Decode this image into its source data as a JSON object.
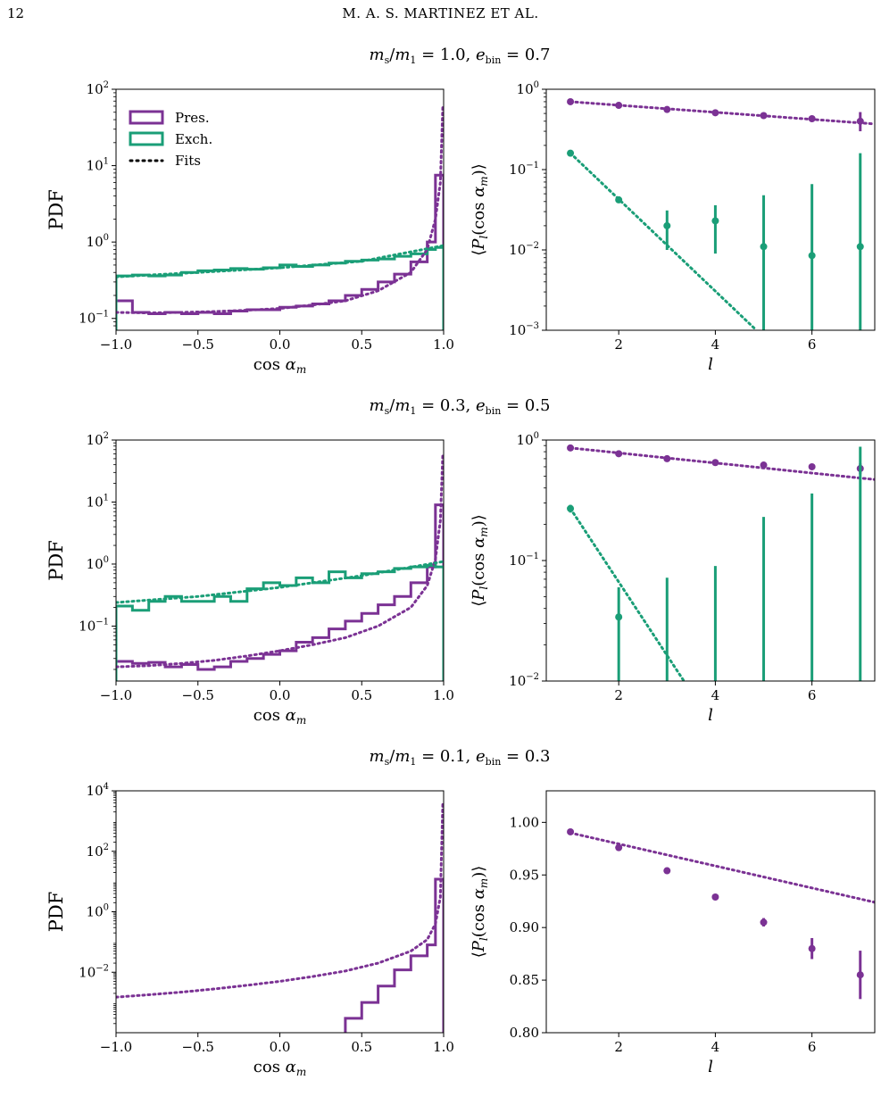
{
  "page": {
    "number": "12",
    "running_head": "M. A. S. MARTINEZ ET AL."
  },
  "colors": {
    "pres": "#7b3294",
    "exch": "#1a9e77",
    "axis": "#000000"
  },
  "legend": {
    "pres": "Pres.",
    "exch": "Exch.",
    "fits": "Fits"
  },
  "chart_data": [
    {
      "panel": "row1-left",
      "type": "line",
      "row_title": "m_s/m_1 = 1.0, e_bin = 0.7",
      "xlabel": "cos α_m",
      "ylabel": "PDF",
      "yscale": "log",
      "xlim": [
        -1.0,
        1.0
      ],
      "ylim": [
        0.07,
        100
      ],
      "xticks": [
        -1.0,
        -0.5,
        0.0,
        0.5,
        1.0
      ],
      "xticklabels": [
        "−1.0",
        "−0.5",
        "0.0",
        "0.5",
        "1.0"
      ],
      "yticks": [
        0.1,
        1,
        10,
        100
      ],
      "ytickmain": [
        "10",
        "10",
        "10",
        "10"
      ],
      "ytickexp": [
        "−1",
        "0",
        "1",
        "2"
      ],
      "legend_position": "top-left",
      "bin_edges": [
        -1.0,
        -0.9,
        -0.8,
        -0.7,
        -0.6,
        -0.5,
        -0.4,
        -0.3,
        -0.2,
        -0.1,
        0.0,
        0.1,
        0.2,
        0.3,
        0.4,
        0.5,
        0.6,
        0.7,
        0.8,
        0.9,
        0.95,
        1.0
      ],
      "series": [
        {
          "name": "Pres.",
          "color": "#7b3294",
          "kind": "hist",
          "values": [
            0.17,
            0.12,
            0.115,
            0.12,
            0.115,
            0.12,
            0.115,
            0.125,
            0.13,
            0.13,
            0.14,
            0.145,
            0.155,
            0.17,
            0.2,
            0.24,
            0.3,
            0.38,
            0.55,
            1.0,
            7.5
          ]
        },
        {
          "name": "Exch.",
          "color": "#1a9e77",
          "kind": "hist",
          "values": [
            0.36,
            0.37,
            0.36,
            0.37,
            0.4,
            0.42,
            0.43,
            0.45,
            0.44,
            0.46,
            0.5,
            0.48,
            0.5,
            0.53,
            0.56,
            0.58,
            0.6,
            0.65,
            0.7,
            0.8,
            0.85
          ]
        },
        {
          "name": "Fits",
          "color": "#7b3294",
          "kind": "fit",
          "x": [
            -1.0,
            -0.8,
            -0.6,
            -0.4,
            -0.2,
            0.0,
            0.2,
            0.4,
            0.6,
            0.8,
            0.9,
            0.95,
            0.98,
            0.995
          ],
          "values": [
            0.12,
            0.118,
            0.12,
            0.123,
            0.128,
            0.135,
            0.15,
            0.17,
            0.23,
            0.4,
            0.8,
            2.0,
            6.0,
            60
          ]
        },
        {
          "name": "Fits",
          "color": "#1a9e77",
          "kind": "fit",
          "x": [
            -1.0,
            -0.5,
            0.0,
            0.5,
            1.0
          ],
          "values": [
            0.35,
            0.4,
            0.46,
            0.56,
            0.9
          ]
        }
      ]
    },
    {
      "panel": "row1-right",
      "type": "scatter",
      "xlabel": "l",
      "ylabel": "⟨P_l(cos α_m)⟩",
      "yscale": "log",
      "xlim": [
        0.5,
        7.3
      ],
      "ylim": [
        0.001,
        1.0
      ],
      "xticks": [
        2,
        4,
        6
      ],
      "xticklabels": [
        "2",
        "4",
        "6"
      ],
      "yticks": [
        0.001,
        0.01,
        0.1,
        1
      ],
      "ytickmain": [
        "10",
        "10",
        "10",
        "10"
      ],
      "ytickexp": [
        "−3",
        "−2",
        "−1",
        "0"
      ],
      "series": [
        {
          "name": "Pres.",
          "color": "#7b3294",
          "x": [
            1,
            2,
            3,
            4,
            5,
            6,
            7
          ],
          "values": [
            0.7,
            0.63,
            0.56,
            0.51,
            0.47,
            0.43,
            0.4
          ],
          "err_lo": [
            0.68,
            0.61,
            0.545,
            0.495,
            0.45,
            0.415,
            0.3
          ],
          "err_hi": [
            0.72,
            0.65,
            0.575,
            0.525,
            0.49,
            0.445,
            0.52
          ]
        },
        {
          "name": "Exch.",
          "color": "#1a9e77",
          "x": [
            1,
            2,
            3,
            4,
            5,
            6,
            7
          ],
          "values": [
            0.16,
            0.042,
            0.02,
            0.023,
            0.011,
            0.0085,
            0.011
          ],
          "err_lo": [
            0.155,
            0.04,
            0.01,
            0.009,
            0.001,
            0.001,
            0.001
          ],
          "err_hi": [
            0.165,
            0.044,
            0.031,
            0.036,
            0.048,
            0.066,
            0.16
          ]
        }
      ],
      "fits": [
        {
          "color": "#7b3294",
          "x": [
            1,
            7.3
          ],
          "values": [
            0.7,
            0.37
          ]
        },
        {
          "color": "#1a9e77",
          "x": [
            1,
            4.85
          ],
          "values": [
            0.16,
            0.001
          ]
        }
      ]
    },
    {
      "panel": "row2-left",
      "type": "line",
      "row_title": "m_s/m_1 = 0.3, e_bin = 0.5",
      "xlabel": "cos α_m",
      "ylabel": "PDF",
      "yscale": "log",
      "xlim": [
        -1.0,
        1.0
      ],
      "ylim": [
        0.013,
        100
      ],
      "xticks": [
        -1.0,
        -0.5,
        0.0,
        0.5,
        1.0
      ],
      "xticklabels": [
        "−1.0",
        "−0.5",
        "0.0",
        "0.5",
        "1.0"
      ],
      "yticks": [
        0.1,
        1,
        10,
        100
      ],
      "ytickmain": [
        "10",
        "10",
        "10",
        "10"
      ],
      "ytickexp": [
        "−1",
        "0",
        "1",
        "2"
      ],
      "bin_edges": [
        -1.0,
        -0.9,
        -0.8,
        -0.7,
        -0.6,
        -0.5,
        -0.4,
        -0.3,
        -0.2,
        -0.1,
        0.0,
        0.1,
        0.2,
        0.3,
        0.4,
        0.5,
        0.6,
        0.7,
        0.8,
        0.9,
        0.95,
        1.0
      ],
      "series": [
        {
          "name": "Pres.",
          "color": "#7b3294",
          "kind": "hist",
          "values": [
            0.027,
            0.025,
            0.026,
            0.022,
            0.024,
            0.02,
            0.022,
            0.027,
            0.03,
            0.035,
            0.04,
            0.055,
            0.065,
            0.09,
            0.12,
            0.16,
            0.22,
            0.3,
            0.5,
            0.9,
            9.0
          ]
        },
        {
          "name": "Exch.",
          "color": "#1a9e77",
          "kind": "hist",
          "values": [
            0.21,
            0.18,
            0.25,
            0.3,
            0.25,
            0.25,
            0.3,
            0.25,
            0.4,
            0.5,
            0.45,
            0.6,
            0.5,
            0.75,
            0.6,
            0.7,
            0.75,
            0.85,
            0.9,
            0.95,
            0.9
          ]
        },
        {
          "name": "Fits",
          "color": "#7b3294",
          "kind": "fit",
          "x": [
            -1.0,
            -0.8,
            -0.6,
            -0.4,
            -0.2,
            0.0,
            0.2,
            0.4,
            0.6,
            0.8,
            0.9,
            0.95,
            0.98,
            0.995
          ],
          "values": [
            0.022,
            0.023,
            0.025,
            0.028,
            0.033,
            0.04,
            0.05,
            0.065,
            0.1,
            0.2,
            0.45,
            1.2,
            5.0,
            60
          ]
        },
        {
          "name": "Fits",
          "color": "#1a9e77",
          "kind": "fit",
          "x": [
            -1.0,
            -0.5,
            0.0,
            0.5,
            1.0
          ],
          "values": [
            0.24,
            0.3,
            0.42,
            0.65,
            1.1
          ]
        }
      ]
    },
    {
      "panel": "row2-right",
      "type": "scatter",
      "xlabel": "l",
      "ylabel": "⟨P_l(cos α_m)⟩",
      "yscale": "log",
      "xlim": [
        0.5,
        7.3
      ],
      "ylim": [
        0.01,
        1.0
      ],
      "xticks": [
        2,
        4,
        6
      ],
      "xticklabels": [
        "2",
        "4",
        "6"
      ],
      "yticks": [
        0.01,
        0.1,
        1
      ],
      "ytickmain": [
        "10",
        "10",
        "10"
      ],
      "ytickexp": [
        "−2",
        "−1",
        "0"
      ],
      "series": [
        {
          "name": "Pres.",
          "color": "#7b3294",
          "x": [
            1,
            2,
            3,
            4,
            5,
            6,
            7
          ],
          "values": [
            0.86,
            0.77,
            0.7,
            0.65,
            0.62,
            0.6,
            0.58
          ],
          "err_lo": [
            0.85,
            0.76,
            0.69,
            0.64,
            0.6,
            0.58,
            0.52
          ],
          "err_hi": [
            0.87,
            0.78,
            0.71,
            0.66,
            0.64,
            0.62,
            0.64
          ]
        },
        {
          "name": "Exch.",
          "color": "#1a9e77",
          "x": [
            1,
            2,
            3,
            4,
            5,
            6,
            7
          ],
          "values": [
            0.27,
            0.034,
            null,
            null,
            null,
            null,
            null
          ],
          "err_lo": [
            0.25,
            0.01,
            0.01,
            0.01,
            0.01,
            0.01,
            0.01
          ],
          "err_hi": [
            0.29,
            0.06,
            0.072,
            0.09,
            0.23,
            0.36,
            0.88
          ]
        }
      ],
      "fits": [
        {
          "color": "#7b3294",
          "x": [
            1,
            7.3
          ],
          "values": [
            0.86,
            0.47
          ]
        },
        {
          "color": "#1a9e77",
          "x": [
            1,
            3.35
          ],
          "values": [
            0.27,
            0.01
          ]
        }
      ]
    },
    {
      "panel": "row3-left",
      "type": "line",
      "row_title": "m_s/m_1 = 0.1, e_bin = 0.3",
      "xlabel": "cos α_m",
      "ylabel": "PDF",
      "yscale": "log",
      "xlim": [
        -1.0,
        1.0
      ],
      "ylim": [
        0.0001,
        10000
      ],
      "xticks": [
        -1.0,
        -0.5,
        0.0,
        0.5,
        1.0
      ],
      "xticklabels": [
        "−1.0",
        "−0.5",
        "0.0",
        "0.5",
        "1.0"
      ],
      "yticks": [
        0.01,
        1,
        100,
        10000
      ],
      "ytickmain": [
        "10",
        "10",
        "10",
        "10"
      ],
      "ytickexp": [
        "−2",
        "0",
        "2",
        "4"
      ],
      "bin_edges": [
        0.4,
        0.5,
        0.6,
        0.7,
        0.8,
        0.9,
        0.95,
        1.0
      ],
      "series": [
        {
          "name": "Pres.",
          "color": "#7b3294",
          "kind": "hist",
          "values": [
            0.0003,
            0.001,
            0.0035,
            0.012,
            0.035,
            0.08,
            12
          ]
        },
        {
          "name": "Fits",
          "color": "#7b3294",
          "kind": "fit",
          "x": [
            -1.0,
            -0.8,
            -0.6,
            -0.4,
            -0.2,
            0.0,
            0.2,
            0.4,
            0.6,
            0.8,
            0.9,
            0.95,
            0.98,
            0.995
          ],
          "values": [
            0.0015,
            0.0018,
            0.0022,
            0.0028,
            0.0037,
            0.005,
            0.0072,
            0.011,
            0.02,
            0.05,
            0.12,
            0.4,
            3.0,
            4000
          ]
        }
      ]
    },
    {
      "panel": "row3-right",
      "type": "scatter",
      "xlabel": "l",
      "ylabel": "⟨P_l(cos α_m)⟩",
      "yscale": "linear",
      "xlim": [
        0.5,
        7.3
      ],
      "ylim": [
        0.8,
        1.03
      ],
      "xticks": [
        2,
        4,
        6
      ],
      "xticklabels": [
        "2",
        "4",
        "6"
      ],
      "yticks": [
        0.8,
        0.85,
        0.9,
        0.95,
        1.0
      ],
      "yticklabels": [
        "0.80",
        "0.85",
        "0.90",
        "0.95",
        "1.00"
      ],
      "series": [
        {
          "name": "Pres.",
          "color": "#7b3294",
          "x": [
            1,
            2,
            3,
            4,
            5,
            6,
            7
          ],
          "values": [
            0.991,
            0.976,
            0.954,
            0.929,
            0.905,
            0.88,
            0.855
          ],
          "err_lo": [
            0.99,
            0.974,
            0.953,
            0.928,
            0.901,
            0.87,
            0.832
          ],
          "err_hi": [
            0.992,
            0.978,
            0.955,
            0.93,
            0.909,
            0.89,
            0.878
          ]
        }
      ],
      "fits": [
        {
          "color": "#7b3294",
          "x": [
            1,
            7.3
          ],
          "values": [
            0.99,
            0.924
          ]
        }
      ]
    }
  ]
}
